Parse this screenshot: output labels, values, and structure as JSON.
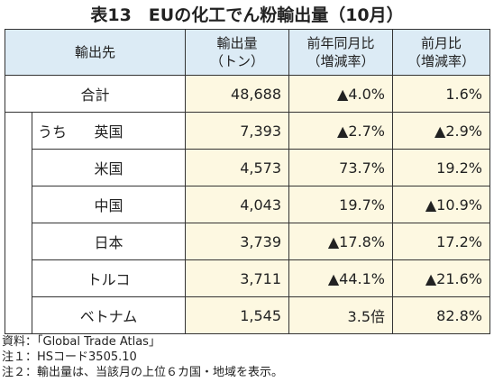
{
  "title": "表13　EUの化工でん粉輸出量（10月）",
  "table": {
    "header": [
      [
        "輸出先"
      ],
      [
        "輸出量",
        "（トン）"
      ],
      [
        "前年同月比",
        "（増減率）"
      ],
      [
        "前月比",
        "（増減率）"
      ]
    ],
    "total": [
      "合計",
      "48,688",
      "▲4.0%",
      "1.6%"
    ],
    "group_label": "うち",
    "rows": [
      [
        "英国",
        "7,393",
        "▲2.7%",
        "▲2.9%"
      ],
      [
        "米国",
        "4,573",
        "73.7%",
        "19.2%"
      ],
      [
        "中国",
        "4,043",
        "19.7%",
        "▲10.9%"
      ],
      [
        "日本",
        "3,739",
        "▲17.8%",
        "17.2%"
      ],
      [
        "トルコ",
        "3,711",
        "▲44.1%",
        "▲21.6%"
      ],
      [
        "ベトナム",
        "1,545",
        "3.5倍",
        "82.8%"
      ]
    ]
  },
  "notes": [
    "資料：「Global Trade Atlas」",
    "注１：HSコード3505.10",
    "注２：輸出量は、当該月の上位６カ国・地域を表示。"
  ]
}
